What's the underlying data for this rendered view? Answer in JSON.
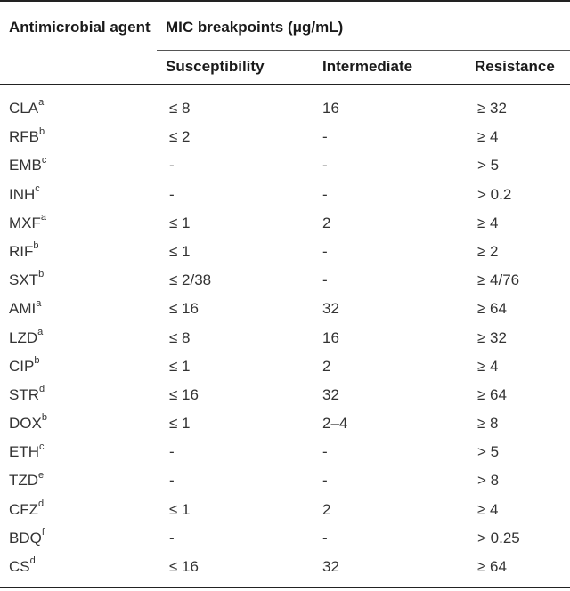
{
  "table": {
    "header": {
      "agent_label": "Antimicrobial agent",
      "mic_label": "MIC breakpoints (μg/mL)",
      "col_susceptibility": "Susceptibility",
      "col_intermediate": "Intermediate",
      "col_resistance": "Resistance"
    },
    "rows": [
      {
        "agent": "CLA",
        "sup": "a",
        "s": "≤ 8",
        "i": "16",
        "r": "≥ 32"
      },
      {
        "agent": "RFB",
        "sup": "b",
        "s": "≤ 2",
        "i": "-",
        "r": "≥ 4"
      },
      {
        "agent": "EMB",
        "sup": "c",
        "s": "-",
        "i": "-",
        "r": "> 5"
      },
      {
        "agent": "INH",
        "sup": "c",
        "s": "-",
        "i": "-",
        "r": "> 0.2"
      },
      {
        "agent": "MXF",
        "sup": "a",
        "s": "≤ 1",
        "i": "2",
        "r": "≥ 4"
      },
      {
        "agent": "RIF",
        "sup": "b",
        "s": "≤ 1",
        "i": "-",
        "r": "≥ 2"
      },
      {
        "agent": "SXT",
        "sup": "b",
        "s": "≤ 2/38",
        "i": "-",
        "r": "≥ 4/76"
      },
      {
        "agent": "AMI",
        "sup": "a",
        "s": "≤ 16",
        "i": "32",
        "r": "≥ 64"
      },
      {
        "agent": "LZD",
        "sup": "a",
        "s": "≤ 8",
        "i": "16",
        "r": "≥ 32"
      },
      {
        "agent": "CIP",
        "sup": "b",
        "s": "≤ 1",
        "i": "2",
        "r": "≥ 4"
      },
      {
        "agent": "STR",
        "sup": "d",
        "s": "≤ 16",
        "i": "32",
        "r": "≥ 64"
      },
      {
        "agent": "DOX",
        "sup": "b",
        "s": "≤ 1",
        "i": "2–4",
        "r": "≥ 8"
      },
      {
        "agent": "ETH",
        "sup": "c",
        "s": "-",
        "i": "-",
        "r": "> 5"
      },
      {
        "agent": "TZD",
        "sup": "e",
        "s": "-",
        "i": "-",
        "r": "> 8"
      },
      {
        "agent": "CFZ",
        "sup": "d",
        "s": "≤ 1",
        "i": "2",
        "r": "≥ 4"
      },
      {
        "agent": "BDQ",
        "sup": "f",
        "s": "-",
        "i": "-",
        "r": "> 0.25"
      },
      {
        "agent": "CS",
        "sup": "d",
        "s": "≤ 16",
        "i": "32",
        "r": "≥ 64"
      }
    ]
  }
}
